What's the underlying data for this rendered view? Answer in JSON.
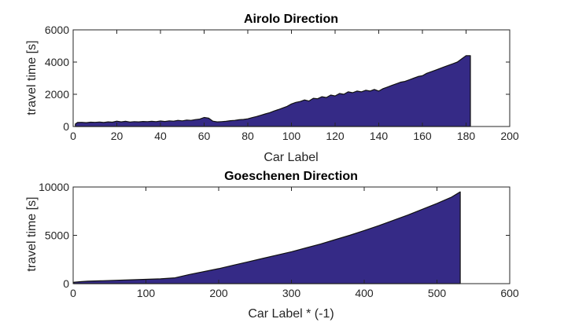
{
  "chart_data": [
    {
      "type": "area",
      "title": "Airolo Direction",
      "xlabel": "Car Label",
      "ylabel": "travel time [s]",
      "xlim": [
        0,
        200
      ],
      "ylim": [
        0,
        6000
      ],
      "xticks": [
        0,
        20,
        40,
        60,
        80,
        100,
        120,
        140,
        160,
        180,
        200
      ],
      "yticks": [
        0,
        2000,
        4000,
        6000
      ],
      "fill_color": "#352a86",
      "edge_color": "#111111",
      "grid": false,
      "x": [
        1,
        2,
        4,
        6,
        8,
        10,
        12,
        14,
        16,
        18,
        20,
        22,
        24,
        26,
        28,
        30,
        32,
        34,
        36,
        38,
        40,
        42,
        44,
        46,
        48,
        50,
        52,
        54,
        56,
        58,
        60,
        62,
        64,
        66,
        68,
        70,
        72,
        74,
        76,
        78,
        80,
        82,
        84,
        86,
        88,
        90,
        92,
        94,
        96,
        98,
        100,
        102,
        104,
        106,
        108,
        110,
        112,
        114,
        116,
        118,
        120,
        122,
        124,
        126,
        128,
        130,
        132,
        134,
        136,
        138,
        140,
        142,
        144,
        146,
        148,
        150,
        152,
        154,
        156,
        158,
        160,
        162,
        164,
        166,
        168,
        170,
        172,
        174,
        176,
        178,
        180,
        182
      ],
      "y": [
        150,
        250,
        260,
        240,
        270,
        260,
        280,
        250,
        290,
        270,
        330,
        290,
        320,
        280,
        300,
        290,
        310,
        300,
        320,
        300,
        340,
        310,
        350,
        330,
        380,
        350,
        400,
        380,
        430,
        460,
        560,
        520,
        330,
        290,
        300,
        320,
        360,
        380,
        420,
        440,
        480,
        550,
        620,
        700,
        780,
        860,
        960,
        1050,
        1150,
        1250,
        1400,
        1500,
        1550,
        1650,
        1580,
        1750,
        1720,
        1850,
        1800,
        1950,
        1900,
        2050,
        2000,
        2150,
        2100,
        2200,
        2150,
        2250,
        2200,
        2300,
        2200,
        2350,
        2450,
        2550,
        2650,
        2750,
        2800,
        2900,
        3000,
        3100,
        3150,
        3300,
        3400,
        3500,
        3600,
        3700,
        3800,
        3900,
        4000,
        4200,
        4400,
        4400
      ]
    },
    {
      "type": "area",
      "title": "Goeschenen Direction",
      "xlabel": "Car Label * (-1)",
      "ylabel": "travel time [s]",
      "xlim": [
        0,
        600
      ],
      "ylim": [
        0,
        10000
      ],
      "xticks": [
        0,
        100,
        200,
        300,
        400,
        500,
        600
      ],
      "yticks": [
        0,
        5000,
        10000
      ],
      "fill_color": "#352a86",
      "edge_color": "#111111",
      "grid": false,
      "x": [
        1,
        10,
        20,
        40,
        60,
        80,
        100,
        120,
        140,
        160,
        180,
        200,
        220,
        240,
        260,
        280,
        300,
        320,
        340,
        360,
        380,
        400,
        420,
        440,
        460,
        480,
        500,
        520,
        532
      ],
      "y": [
        150,
        200,
        250,
        300,
        350,
        400,
        450,
        500,
        600,
        950,
        1250,
        1550,
        1900,
        2250,
        2600,
        2950,
        3300,
        3700,
        4100,
        4550,
        5000,
        5500,
        6000,
        6550,
        7100,
        7700,
        8300,
        8950,
        9500
      ]
    }
  ]
}
